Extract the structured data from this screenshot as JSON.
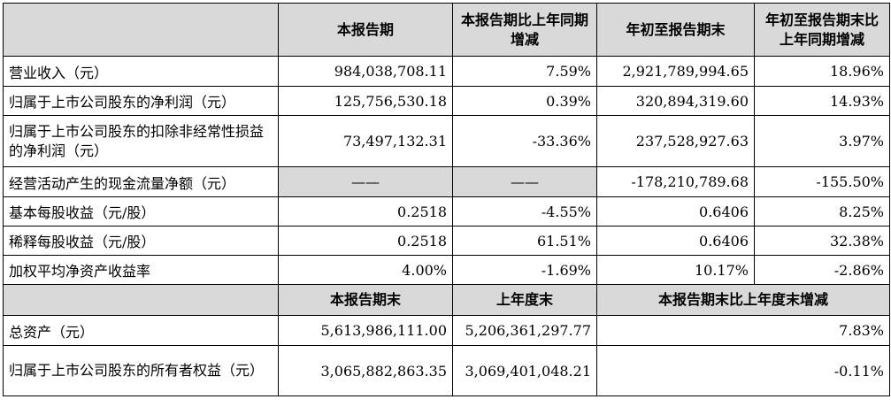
{
  "headers_top": [
    "",
    "本报告期",
    "本报告期比上年同期增减",
    "年初至报告期末",
    "年初至报告期末比上年同期增减"
  ],
  "rows_top": [
    {
      "label": "营业收入（元）",
      "v1": "984,038,708.11",
      "v2": "7.59%",
      "v3": "2,921,789,994.65",
      "v4": "18.96%"
    },
    {
      "label": "归属于上市公司股东的净利润（元）",
      "v1": "125,756,530.18",
      "v2": "0.39%",
      "v3": "320,894,319.60",
      "v4": "14.93%"
    },
    {
      "label": "归属于上市公司股东的扣除非经常性损益的净利润（元）",
      "v1": "73,497,132.31",
      "v2": "-33.36%",
      "v3": "237,528,927.63",
      "v4": "3.97%"
    },
    {
      "label": "经营活动产生的现金流量净额（元）",
      "v1": "——",
      "v2": "——",
      "v3": "-178,210,789.68",
      "v4": "-155.50%"
    },
    {
      "label": "基本每股收益（元/股）",
      "v1": "0.2518",
      "v2": "-4.55%",
      "v3": "0.6406",
      "v4": "8.25%"
    },
    {
      "label": "稀释每股收益（元/股）",
      "v1": "0.2518",
      "v2": "61.51%",
      "v3": "0.6406",
      "v4": "32.38%"
    },
    {
      "label": "加权平均净资产收益率",
      "v1": "4.00%",
      "v2": "-1.69%",
      "v3": "10.17%",
      "v4": "-2.86%"
    }
  ],
  "headers_bottom": [
    "",
    "本报告期末",
    "上年度末",
    "本报告期末比上年度末增减"
  ],
  "rows_bottom": [
    {
      "label": "总资产（元）",
      "v1": "5,613,986,111.00",
      "v2": "5,206,361,297.77",
      "v3": "7.83%"
    },
    {
      "label": "归属于上市公司股东的所有者权益（元）",
      "v1": "3,065,882,863.35",
      "v2": "3,069,401,048.21",
      "v3": "-0.11%"
    }
  ]
}
